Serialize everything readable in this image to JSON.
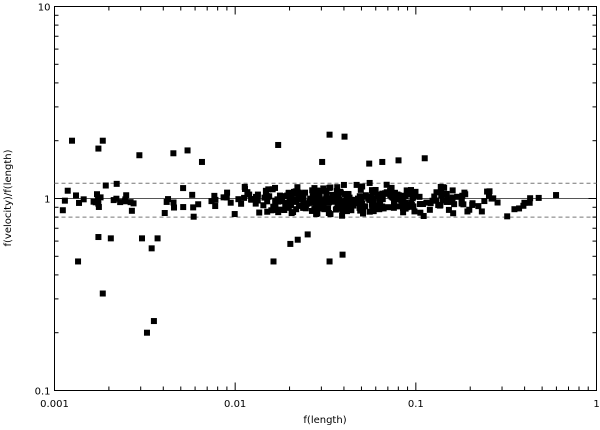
{
  "chart_data": {
    "type": "scatter",
    "xlabel": "f(length)",
    "ylabel": "f(velocity)/f(length)",
    "xscale": "log",
    "yscale": "log",
    "xlim": [
      0.001,
      1
    ],
    "ylim": [
      0.1,
      10
    ],
    "xticks": [
      {
        "value": 0.001,
        "label": "0.001"
      },
      {
        "value": 0.01,
        "label": "0.01"
      },
      {
        "value": 0.1,
        "label": "0.1"
      },
      {
        "value": 1,
        "label": "1"
      }
    ],
    "yticks": [
      {
        "value": 0.1,
        "label": "0.1"
      },
      {
        "value": 1,
        "label": "1"
      },
      {
        "value": 10,
        "label": "10"
      }
    ],
    "grid": false,
    "legend": "none",
    "reference_lines": [
      {
        "y": 1.0,
        "style": "solid",
        "color": "#555555"
      },
      {
        "y": 1.2,
        "style": "dashed",
        "color": "#777777"
      },
      {
        "y": 0.8,
        "style": "dashed",
        "color": "#777777"
      }
    ],
    "marker": {
      "shape": "square",
      "color": "#000000"
    },
    "outliers": [
      [
        0.00125,
        2.0
      ],
      [
        0.00175,
        1.82
      ],
      [
        0.00185,
        2.0
      ],
      [
        0.00295,
        1.68
      ],
      [
        0.00455,
        1.72
      ],
      [
        0.00545,
        1.78
      ],
      [
        0.00655,
        1.55
      ],
      [
        0.0173,
        1.9
      ],
      [
        0.0303,
        1.55
      ],
      [
        0.0333,
        2.15
      ],
      [
        0.0403,
        2.1
      ],
      [
        0.0552,
        1.52
      ],
      [
        0.0652,
        1.55
      ],
      [
        0.0802,
        1.58
      ],
      [
        0.112,
        1.62
      ],
      [
        0.00185,
        0.32
      ],
      [
        0.00325,
        0.2
      ],
      [
        0.00355,
        0.23
      ],
      [
        0.00305,
        0.62
      ],
      [
        0.00345,
        0.55
      ],
      [
        0.00372,
        0.62
      ],
      [
        0.00135,
        0.47
      ],
      [
        0.00175,
        0.63
      ],
      [
        0.00205,
        0.62
      ],
      [
        0.0163,
        0.47
      ],
      [
        0.0333,
        0.47
      ],
      [
        0.0393,
        0.51
      ],
      [
        0.0202,
        0.58
      ],
      [
        0.0252,
        0.65
      ],
      [
        0.0222,
        0.61
      ]
    ],
    "cluster": {
      "count": 400,
      "x_range": [
        0.001,
        0.6
      ],
      "y_center": 0.97,
      "y_spread": [
        0.72,
        1.32
      ]
    }
  }
}
